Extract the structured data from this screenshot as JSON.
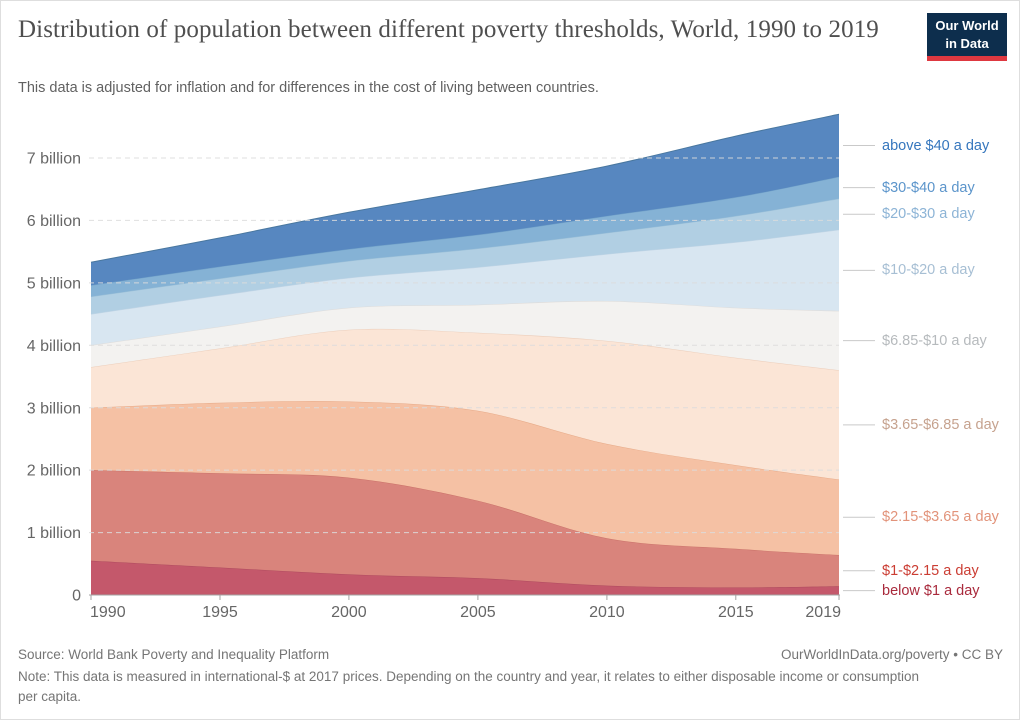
{
  "header": {
    "title": "Distribution of population between different poverty thresholds, World, 1990 to 2019",
    "subtitle": "This data is adjusted for inflation and for differences in the cost of living between countries.",
    "logo": {
      "line1": "Our World",
      "line2": "in Data",
      "bg_color": "#0d2e4d",
      "accent_color": "#de3840"
    }
  },
  "footer": {
    "source": "Source: World Bank Poverty and Inequality Platform",
    "attribution": "OurWorldInData.org/poverty • CC BY",
    "note": "Note: This data is measured in international-$ at 2017 prices. Depending on the country and year, it relates to either disposable income or consumption per capita."
  },
  "chart_data": {
    "type": "area",
    "stacked": true,
    "title": "Distribution of population between different poverty thresholds, World, 1990 to 2019",
    "subtitle": "This data is adjusted for inflation and for differences in the cost of living between countries.",
    "xlabel": "",
    "ylabel": "",
    "y_unit": "billion people",
    "ylim": [
      0,
      7.9
    ],
    "x": [
      1990,
      1995,
      2000,
      2005,
      2010,
      2015,
      2019
    ],
    "x_tick_labels": [
      "1990",
      "1995",
      "2000",
      "2005",
      "2010",
      "2015",
      "2019"
    ],
    "y_ticks": [
      {
        "value": 0,
        "label": "0"
      },
      {
        "value": 1,
        "label": "1 billion"
      },
      {
        "value": 2,
        "label": "2 billion"
      },
      {
        "value": 3,
        "label": "3 billion"
      },
      {
        "value": 4,
        "label": "4 billion"
      },
      {
        "value": 5,
        "label": "5 billion"
      },
      {
        "value": 6,
        "label": "6 billion"
      },
      {
        "value": 7,
        "label": "7 billion"
      }
    ],
    "grid": "horizontal dashed",
    "legend_position": "right-edge direct labels",
    "grid_color": "#dcdcdc",
    "axis_color": "#a3a3a3",
    "tick_text_color": "#666666",
    "connector_color": "#c9c9c9",
    "series": [
      {
        "id": "below-1",
        "label": "below $1 a day",
        "fill": "#c4586b",
        "edge": "#ae4a5e",
        "label_color": "#a92a3c",
        "values": [
          0.55,
          0.44,
          0.33,
          0.27,
          0.15,
          0.12,
          0.14
        ]
      },
      {
        "id": "1-2.15",
        "label": "$1-$2.15 a day",
        "fill": "#d9847c",
        "edge": "#c97168",
        "label_color": "#cb3d33",
        "values": [
          1.45,
          1.51,
          1.55,
          1.24,
          0.76,
          0.62,
          0.5
        ]
      },
      {
        "id": "2.15-3.65",
        "label": "$2.15-$3.65 a day",
        "fill": "#f5c1a4",
        "edge": "#e7ab89",
        "label_color": "#e2937a",
        "values": [
          1.0,
          1.13,
          1.22,
          1.44,
          1.51,
          1.34,
          1.21
        ]
      },
      {
        "id": "3.65-6.85",
        "label": "$3.65-$6.85 a day",
        "fill": "#fbe5d6",
        "edge": "#eccfbc",
        "label_color": "#c6a28e",
        "values": [
          0.65,
          0.87,
          1.15,
          1.25,
          1.65,
          1.72,
          1.75
        ]
      },
      {
        "id": "6.85-10",
        "label": "$6.85-$10 a day",
        "fill": "#f3f2f0",
        "edge": "#dedcda",
        "label_color": "#b6babd",
        "values": [
          0.35,
          0.35,
          0.35,
          0.45,
          0.64,
          0.8,
          0.95
        ]
      },
      {
        "id": "10-20",
        "label": "$10-$20 a day",
        "fill": "#d8e6f1",
        "edge": "#c2d5e5",
        "label_color": "#a7bfd4",
        "values": [
          0.5,
          0.5,
          0.48,
          0.6,
          0.75,
          1.05,
          1.3
        ]
      },
      {
        "id": "20-30",
        "label": "$20-$30 a day",
        "fill": "#b1cfe3",
        "edge": "#9cc0d8",
        "label_color": "#8db4d6",
        "values": [
          0.28,
          0.27,
          0.27,
          0.3,
          0.34,
          0.42,
          0.5
        ]
      },
      {
        "id": "30-40",
        "label": "$30-$40 a day",
        "fill": "#85b2d5",
        "edge": "#73a3c9",
        "label_color": "#5c95cb",
        "values": [
          0.18,
          0.19,
          0.19,
          0.22,
          0.27,
          0.3,
          0.35
        ]
      },
      {
        "id": "above-40",
        "label": "above $40 a day",
        "fill": "#5787c0",
        "edge": "#49779f",
        "label_color": "#3576bd",
        "values": [
          0.37,
          0.46,
          0.59,
          0.72,
          0.8,
          0.98,
          1.0
        ]
      }
    ]
  }
}
